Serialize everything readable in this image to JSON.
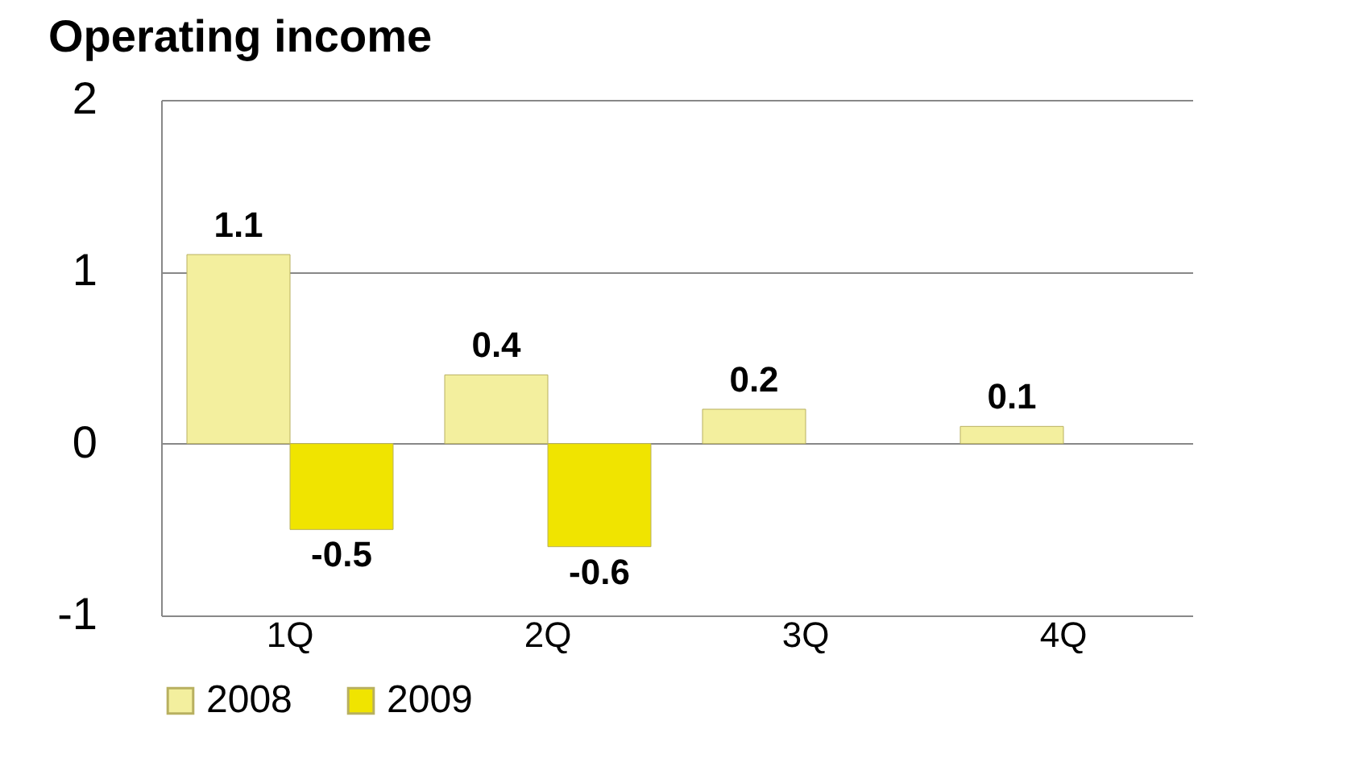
{
  "chart_data": {
    "type": "bar",
    "title": "Operating income",
    "categories": [
      "1Q",
      "2Q",
      "3Q",
      "4Q"
    ],
    "series": [
      {
        "name": "2008",
        "color": "#f3ef9e",
        "values": [
          1.1,
          0.4,
          0.2,
          0.1
        ]
      },
      {
        "name": "2009",
        "color": "#f0e400",
        "values": [
          -0.5,
          -0.6,
          null,
          null
        ]
      }
    ],
    "ylim": [
      -1,
      2
    ],
    "yticks": [
      -1,
      0,
      1,
      2
    ],
    "grid": "y",
    "legend": "bottom",
    "data_labels": true
  }
}
